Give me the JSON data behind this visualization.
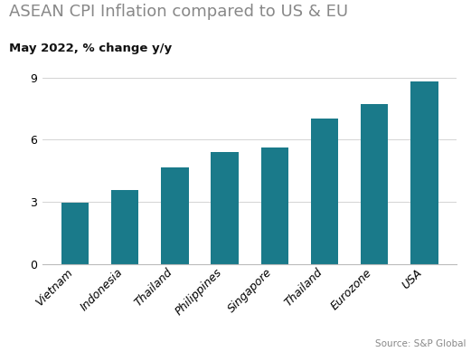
{
  "title": "ASEAN CPI Inflation compared to US & EU",
  "subtitle": "May 2022, % change y/y",
  "source": "Source: S&P Global",
  "categories": [
    "Vietnam",
    "Indonesia",
    "Thailand",
    "Philippines",
    "Singapore",
    "Thailand",
    "Eurozone",
    "USA"
  ],
  "values": [
    2.96,
    3.55,
    4.65,
    5.4,
    5.6,
    7.0,
    7.7,
    8.8
  ],
  "bar_color": "#1a7a8a",
  "ylim": [
    0,
    9
  ],
  "yticks": [
    0,
    3,
    6,
    9
  ],
  "background_color": "#ffffff",
  "title_fontsize": 13,
  "subtitle_fontsize": 9.5,
  "tick_fontsize": 9,
  "source_fontsize": 7.5,
  "title_color": "#888888",
  "subtitle_color": "#111111",
  "source_color": "#888888"
}
